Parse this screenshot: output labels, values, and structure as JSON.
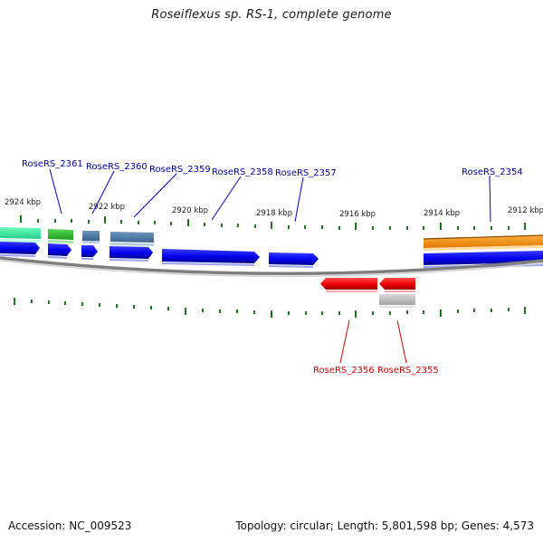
{
  "title": "Roseiflexus sp. RS-1, complete genome",
  "footer": {
    "accession": "Accession: NC_009523",
    "summary": "Topology: circular; Length: 5,801,598 bp; Genes: 4,573"
  },
  "scale_labels": [
    "2924 kbp",
    "2922 kbp",
    "2920 kbp",
    "2918 kbp",
    "2916 kbp",
    "2914 kbp",
    "2912 kbp"
  ],
  "gene_labels": {
    "top": [
      "RoseRS_2361",
      "RoseRS_2360",
      "RoseRS_2359",
      "RoseRS_2358",
      "RoseRS_2357",
      "RoseRS_2354"
    ],
    "bottom": [
      "RoseRS_2356",
      "RoseRS_2355"
    ]
  },
  "colors": {
    "forward_gene": "#0000ee",
    "reverse_gene": "#ee0000",
    "label_forward": "#0000aa",
    "label_reverse": "#cc0000",
    "tick": "#1a7a1a",
    "backbone": "#888888"
  }
}
